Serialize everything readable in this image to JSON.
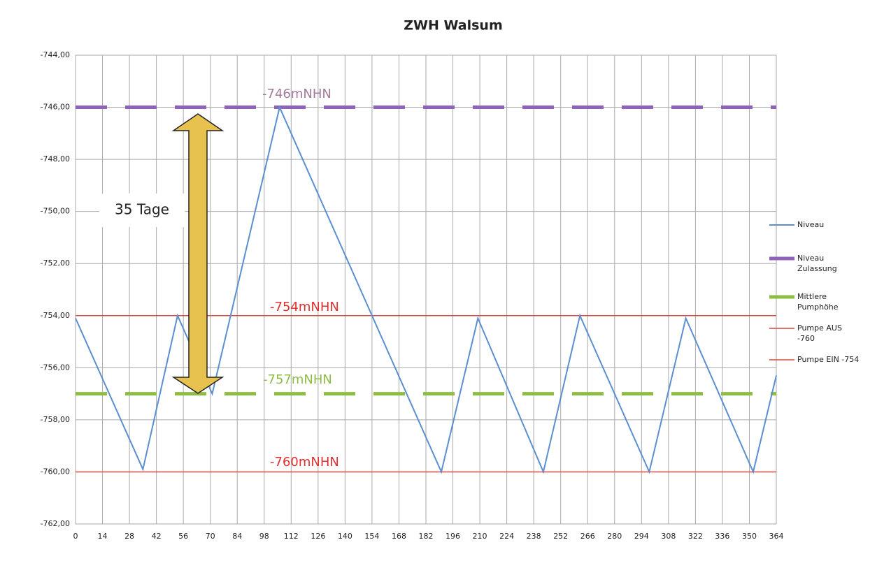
{
  "chart_data": {
    "type": "line",
    "title": "ZWH Walsum",
    "xlim": [
      0,
      364
    ],
    "xticks": [
      0,
      14,
      28,
      42,
      56,
      70,
      84,
      98,
      112,
      126,
      140,
      154,
      168,
      182,
      196,
      210,
      224,
      238,
      252,
      266,
      280,
      294,
      308,
      322,
      336,
      350,
      364
    ],
    "ylim": [
      -762,
      -744
    ],
    "yticks": [
      {
        "value": -762,
        "label": "-762,00"
      },
      {
        "value": -760,
        "label": "-760,00"
      },
      {
        "value": -758,
        "label": "-758,00"
      },
      {
        "value": -756,
        "label": "-756,00"
      },
      {
        "value": -754,
        "label": "-754,00"
      },
      {
        "value": -752,
        "label": "-752,00"
      },
      {
        "value": -750,
        "label": "-750,00"
      },
      {
        "value": -748,
        "label": "-748,00"
      },
      {
        "value": -746,
        "label": "-746,00"
      },
      {
        "value": -744,
        "label": "-744,00"
      }
    ],
    "grid": true,
    "legend": "right",
    "series": [
      {
        "name": "Niveau",
        "color": "#5b8fd0",
        "x": [
          0,
          35,
          53,
          71,
          106,
          190,
          209,
          243,
          262,
          298,
          317,
          352,
          364
        ],
        "values": [
          -754.1,
          -759.9,
          -754,
          -757,
          -746,
          -760,
          -754.1,
          -760,
          -754,
          -760,
          -754.1,
          -760,
          -756.3
        ]
      },
      {
        "name": "Niveau Zulassung",
        "color": "#8e63b8",
        "x": [
          0,
          364
        ],
        "values": [
          -746,
          -746
        ]
      },
      {
        "name": "Mittlere Pumphöhe",
        "color": "#8fbc45",
        "x": [
          0,
          364
        ],
        "values": [
          -757,
          -757
        ]
      },
      {
        "name": "Pumpe AUS -760",
        "color": "#d9473f",
        "x": [
          0,
          364
        ],
        "values": [
          -760,
          -760
        ]
      },
      {
        "name": "Pumpe EIN -754",
        "color": "#d9473f",
        "x": [
          0,
          364
        ],
        "values": [
          -754,
          -754
        ]
      }
    ],
    "annotations": [
      "-746mNHN",
      "-754mNHN",
      "-757mNHN",
      "-760mNHN",
      "35 Tage"
    ]
  }
}
